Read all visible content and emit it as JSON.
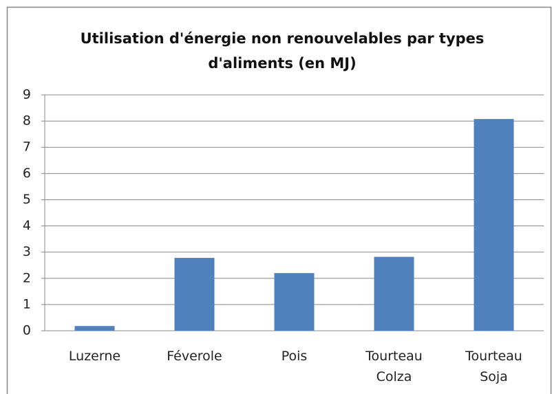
{
  "chart_data": {
    "type": "bar",
    "title": "Utilisation d'énergie non renouvelables par types d'aliments (en MJ)",
    "categories": [
      "Luzerne",
      "Féverole",
      "Pois",
      "Tourteau Colza",
      "Tourteau Soja"
    ],
    "values": [
      0.18,
      2.78,
      2.2,
      2.82,
      8.08
    ],
    "color": "#4f81bd",
    "ylim": [
      0,
      9
    ],
    "yticks": [
      0,
      1,
      2,
      3,
      4,
      5,
      6,
      7,
      8,
      9
    ],
    "grid": true
  }
}
